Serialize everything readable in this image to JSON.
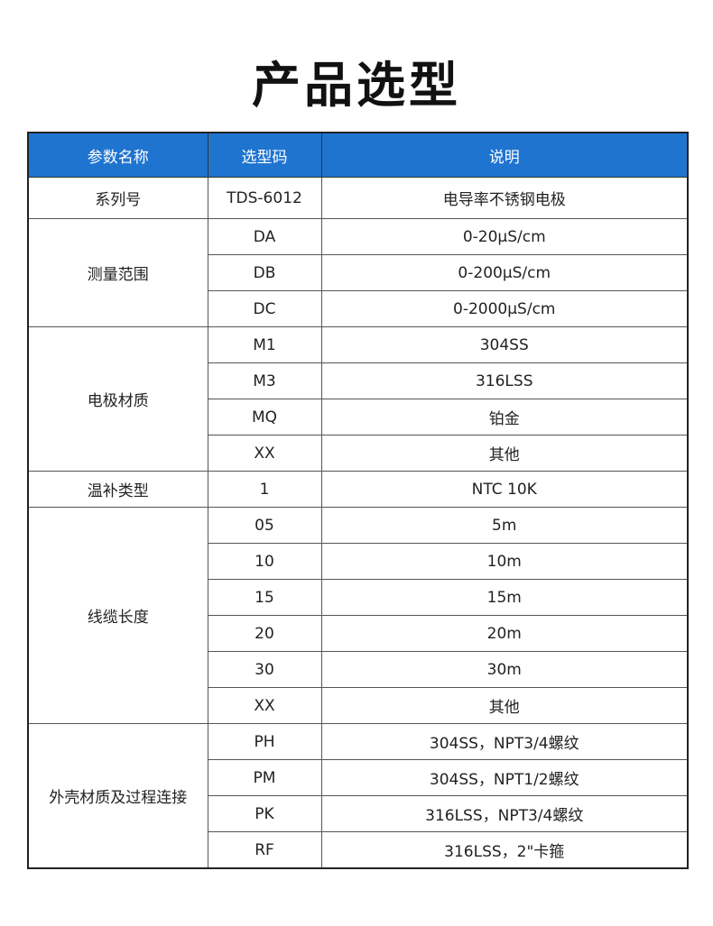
{
  "title": "产品选型",
  "header": [
    "参数名称",
    "选型码",
    "说明"
  ],
  "colors": {
    "header_bg": "#1f74d0"
  },
  "groups": [
    {
      "name": "系列号",
      "rows": [
        [
          "TDS-6012",
          "电导率不锈钢电极"
        ]
      ]
    },
    {
      "name": "测量范围",
      "rows": [
        [
          "DA",
          "0-20μS/cm"
        ],
        [
          "DB",
          "0-200μS/cm"
        ],
        [
          "DC",
          "0-2000μS/cm"
        ]
      ]
    },
    {
      "name": "电极材质",
      "rows": [
        [
          "M1",
          "304SS"
        ],
        [
          "M3",
          "316LSS"
        ],
        [
          "MQ",
          "铂金"
        ],
        [
          "XX",
          "其他"
        ]
      ]
    },
    {
      "name": "温补类型",
      "rows": [
        [
          "1",
          "NTC 10K"
        ]
      ]
    },
    {
      "name": "线缆长度",
      "rows": [
        [
          "05",
          "5m"
        ],
        [
          "10",
          "10m"
        ],
        [
          "15",
          "15m"
        ],
        [
          "20",
          "20m"
        ],
        [
          "30",
          "30m"
        ],
        [
          "XX",
          "其他"
        ]
      ]
    },
    {
      "name": "外壳材质及过程连接",
      "rows": [
        [
          "PH",
          "304SS，NPT3/4螺纹"
        ],
        [
          "PM",
          "304SS，NPT1/2螺纹"
        ],
        [
          "PK",
          "316LSS，NPT3/4螺纹"
        ],
        [
          "RF",
          "316LSS，2\"卡箍"
        ]
      ]
    }
  ]
}
